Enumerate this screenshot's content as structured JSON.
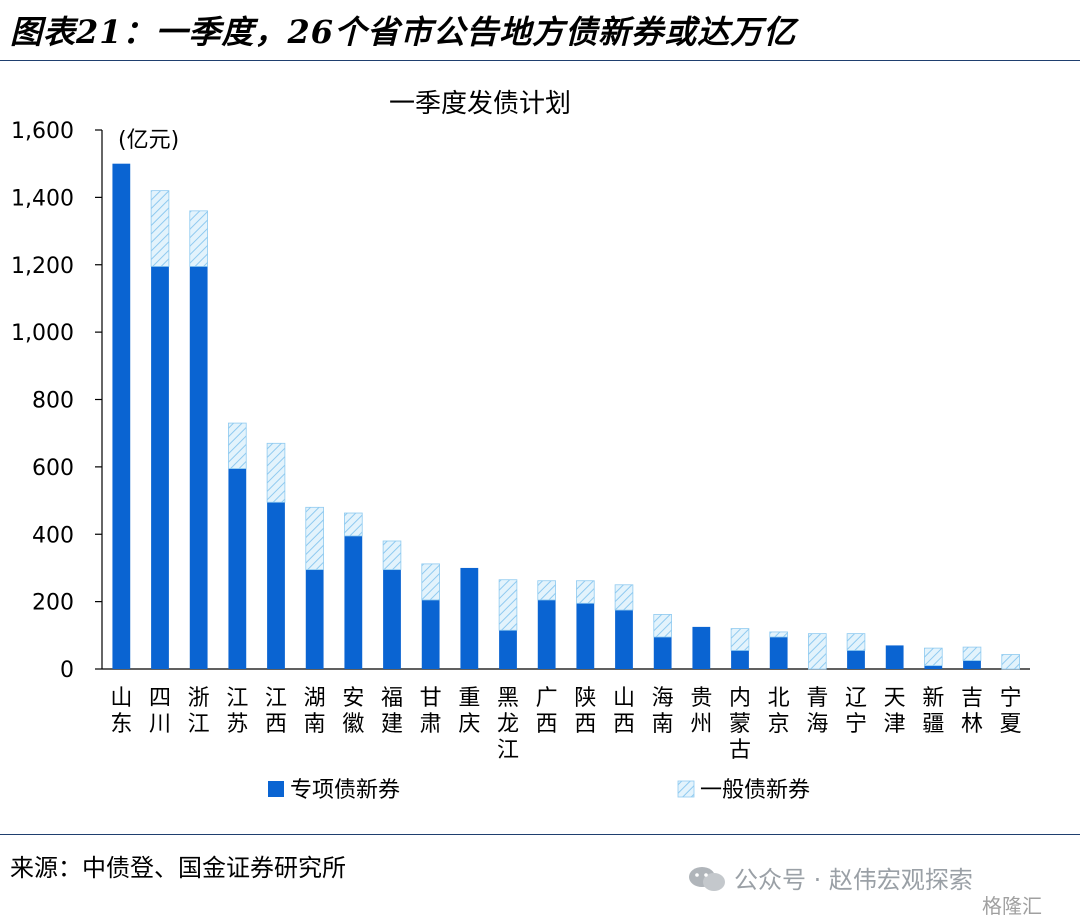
{
  "header": {
    "title": "图表21：一季度，26个省市公告地方债新券或达万亿"
  },
  "footer": {
    "source": "来源：中债登、国金证券研究所",
    "watermark": "公众号 · 赵伟宏观探索",
    "logo": "格隆汇"
  },
  "chart_data": {
    "type": "bar",
    "stacked": true,
    "title": "一季度发债计划",
    "unit_label": "(亿元)",
    "ylim": [
      0,
      1600
    ],
    "yticks": [
      0,
      200,
      400,
      600,
      800,
      1000,
      1200,
      1400,
      1600
    ],
    "ytick_labels": [
      "0",
      "200",
      "400",
      "600",
      "800",
      "1,000",
      "1,200",
      "1,400",
      "1,600"
    ],
    "categories": [
      "山东",
      "四川",
      "浙江",
      "江苏",
      "江西",
      "湖南",
      "安徽",
      "福建",
      "甘肃",
      "重庆",
      "黑龙江",
      "广西",
      "陕西",
      "山西",
      "海南",
      "贵州",
      "内蒙古",
      "北京",
      "青海",
      "辽宁",
      "天津",
      "新疆",
      "吉林",
      "宁夏"
    ],
    "series": [
      {
        "name": "专项债新券",
        "color": "#0a64d2",
        "pattern": "solid",
        "values": [
          1500,
          1195,
          1195,
          595,
          495,
          295,
          395,
          295,
          205,
          300,
          115,
          205,
          195,
          175,
          95,
          125,
          55,
          95,
          0,
          55,
          70,
          10,
          25,
          0
        ]
      },
      {
        "name": "一般债新券",
        "color": "#bfe3f7",
        "pattern": "diagonal-hatch",
        "values": [
          0,
          225,
          165,
          135,
          175,
          185,
          68,
          85,
          107,
          0,
          150,
          57,
          67,
          75,
          67,
          0,
          65,
          15,
          105,
          50,
          0,
          52,
          40,
          43
        ]
      }
    ],
    "legend_position": "bottom"
  }
}
